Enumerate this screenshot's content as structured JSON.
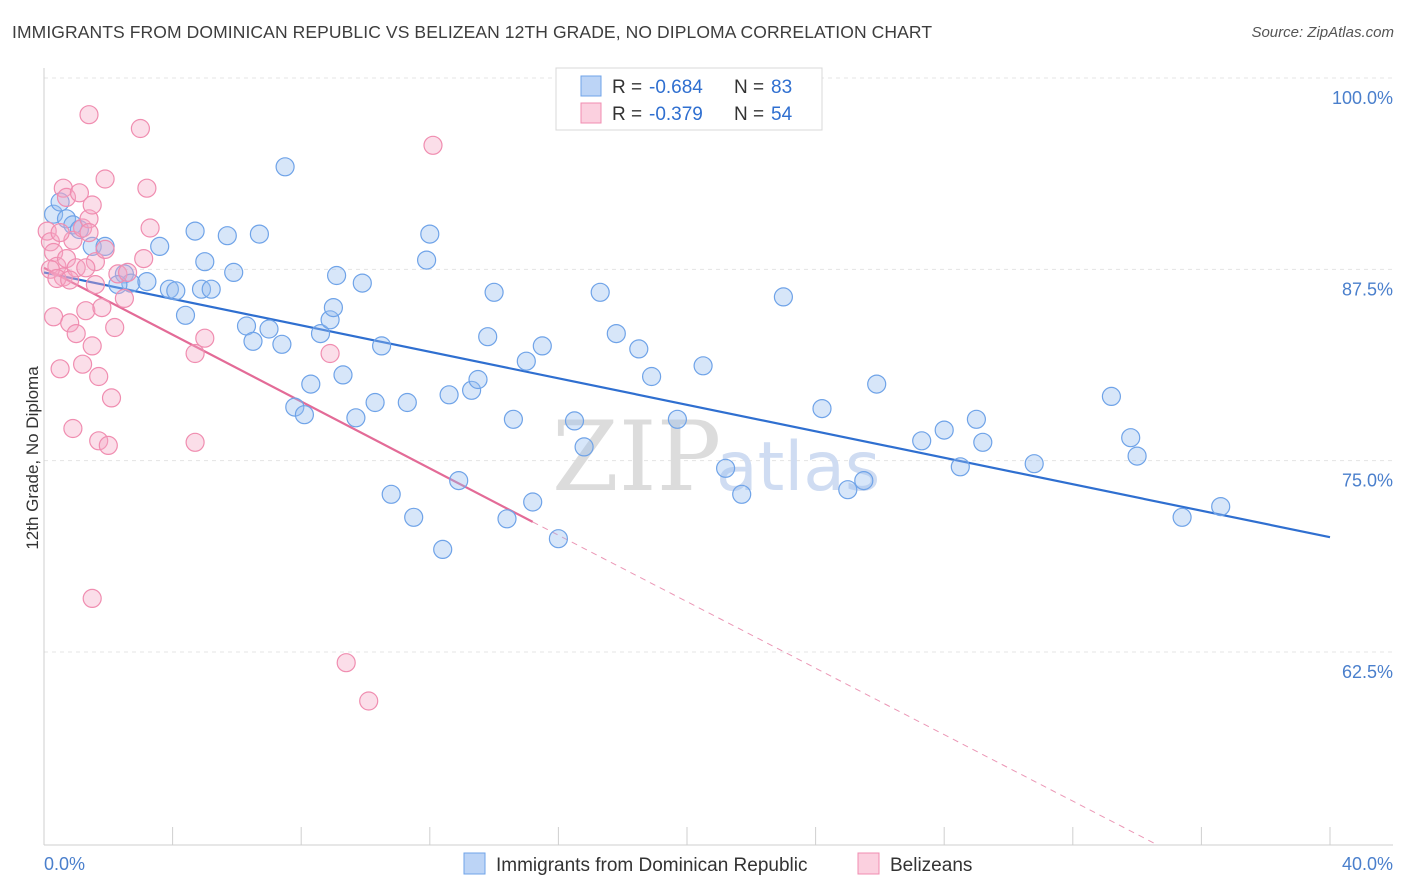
{
  "header": {
    "title": "IMMIGRANTS FROM DOMINICAN REPUBLIC VS BELIZEAN 12TH GRADE, NO DIPLOMA CORRELATION CHART",
    "source": "Source: ZipAtlas.com"
  },
  "watermark": {
    "zip": "ZIP",
    "atlas": "atlas"
  },
  "legend": {
    "rows": [
      {
        "r_label": "R =",
        "r_value": "-0.684",
        "n_label": "N =",
        "n_value": "83",
        "color": "#6fa3e8"
      },
      {
        "r_label": "R =",
        "r_value": "-0.379",
        "n_label": "N =",
        "n_value": "54",
        "color": "#f08db0"
      }
    ]
  },
  "chart_data": {
    "type": "scatter",
    "title": "IMMIGRANTS FROM DOMINICAN REPUBLIC VS BELIZEAN 12TH GRADE, NO DIPLOMA CORRELATION CHART",
    "xlabel": "",
    "ylabel": "12th Grade, No Diploma",
    "xlim": [
      0,
      40
    ],
    "ylim": [
      52,
      102
    ],
    "x_ticks": [
      "0.0%",
      "40.0%"
    ],
    "y_ticks": [
      {
        "value": 100,
        "label": "100.0%"
      },
      {
        "value": 87.5,
        "label": "87.5%"
      },
      {
        "value": 75,
        "label": "75.0%"
      },
      {
        "value": 62.5,
        "label": "62.5%"
      }
    ],
    "grid": true,
    "legend_position": "top-center",
    "series": [
      {
        "name": "Immigrants from Dominican Republic",
        "color": "#6fa3e8",
        "line_color": "#2f6fd0",
        "trend": {
          "x": [
            0,
            40
          ],
          "y": [
            87.3,
            70.0
          ],
          "dashed_after": null
        },
        "points": [
          [
            0.3,
            91.1
          ],
          [
            0.5,
            91.9
          ],
          [
            0.7,
            90.8
          ],
          [
            0.9,
            90.4
          ],
          [
            1.1,
            90.1
          ],
          [
            1.5,
            89.0
          ],
          [
            1.9,
            89.0
          ],
          [
            2.5,
            87.2
          ],
          [
            2.7,
            86.6
          ],
          [
            3.2,
            86.7
          ],
          [
            3.6,
            89.0
          ],
          [
            3.9,
            86.2
          ],
          [
            4.1,
            86.1
          ],
          [
            4.4,
            84.5
          ],
          [
            4.7,
            90.0
          ],
          [
            4.9,
            86.2
          ],
          [
            5.2,
            86.2
          ],
          [
            5.7,
            89.7
          ],
          [
            5.9,
            87.3
          ],
          [
            6.3,
            83.8
          ],
          [
            6.5,
            82.8
          ],
          [
            6.7,
            89.8
          ],
          [
            7.0,
            83.6
          ],
          [
            7.4,
            82.6
          ],
          [
            7.5,
            94.2
          ],
          [
            7.8,
            78.5
          ],
          [
            8.1,
            78.0
          ],
          [
            8.3,
            80.0
          ],
          [
            8.6,
            83.3
          ],
          [
            8.9,
            84.2
          ],
          [
            9.1,
            87.1
          ],
          [
            9.3,
            80.6
          ],
          [
            9.7,
            77.8
          ],
          [
            9.9,
            86.6
          ],
          [
            10.3,
            78.8
          ],
          [
            10.5,
            82.5
          ],
          [
            10.8,
            72.8
          ],
          [
            11.3,
            78.8
          ],
          [
            11.5,
            71.3
          ],
          [
            11.9,
            88.1
          ],
          [
            12.0,
            89.8
          ],
          [
            12.4,
            69.2
          ],
          [
            12.6,
            79.3
          ],
          [
            12.9,
            73.7
          ],
          [
            13.3,
            79.6
          ],
          [
            13.5,
            80.3
          ],
          [
            13.8,
            83.1
          ],
          [
            14.0,
            86.0
          ],
          [
            14.4,
            71.2
          ],
          [
            14.6,
            77.7
          ],
          [
            15.0,
            81.5
          ],
          [
            15.2,
            72.3
          ],
          [
            16.0,
            69.9
          ],
          [
            16.5,
            77.6
          ],
          [
            16.8,
            75.9
          ],
          [
            17.3,
            86.0
          ],
          [
            17.8,
            83.3
          ],
          [
            18.5,
            82.3
          ],
          [
            18.9,
            80.5
          ],
          [
            19.7,
            77.7
          ],
          [
            20.5,
            81.2
          ],
          [
            21.2,
            74.5
          ],
          [
            21.7,
            72.8
          ],
          [
            23.0,
            85.7
          ],
          [
            24.2,
            78.4
          ],
          [
            25.0,
            73.1
          ],
          [
            25.5,
            73.7
          ],
          [
            25.9,
            80.0
          ],
          [
            27.3,
            76.3
          ],
          [
            28.0,
            77.0
          ],
          [
            28.5,
            74.6
          ],
          [
            29.0,
            77.7
          ],
          [
            29.2,
            76.2
          ],
          [
            30.8,
            74.8
          ],
          [
            33.2,
            79.2
          ],
          [
            33.8,
            76.5
          ],
          [
            34.0,
            75.3
          ],
          [
            35.4,
            71.3
          ],
          [
            36.6,
            72.0
          ],
          [
            5.0,
            88.0
          ],
          [
            9.0,
            85.0
          ],
          [
            15.5,
            82.5
          ],
          [
            2.3,
            86.5
          ]
        ]
      },
      {
        "name": "Belizeans",
        "color": "#f08db0",
        "line_color": "#e36b97",
        "trend": {
          "x": [
            0,
            15.2
          ],
          "y": [
            87.6,
            71.0
          ],
          "dashed_to": [
            35.0,
            49.5
          ]
        },
        "points": [
          [
            0.1,
            90.0
          ],
          [
            0.2,
            89.3
          ],
          [
            0.3,
            88.6
          ],
          [
            0.4,
            87.7
          ],
          [
            0.3,
            84.4
          ],
          [
            0.5,
            81.0
          ],
          [
            0.6,
            87.0
          ],
          [
            0.6,
            92.8
          ],
          [
            0.7,
            88.2
          ],
          [
            0.8,
            84.0
          ],
          [
            0.7,
            92.2
          ],
          [
            0.9,
            89.4
          ],
          [
            0.9,
            77.1
          ],
          [
            1.0,
            87.6
          ],
          [
            1.1,
            92.5
          ],
          [
            1.0,
            83.3
          ],
          [
            1.2,
            90.2
          ],
          [
            1.2,
            81.3
          ],
          [
            1.3,
            84.8
          ],
          [
            1.4,
            90.8
          ],
          [
            1.4,
            89.9
          ],
          [
            1.5,
            82.5
          ],
          [
            1.4,
            97.6
          ],
          [
            1.5,
            91.7
          ],
          [
            1.5,
            66.0
          ],
          [
            1.6,
            86.5
          ],
          [
            1.6,
            88.0
          ],
          [
            1.7,
            80.5
          ],
          [
            1.7,
            76.3
          ],
          [
            1.8,
            85.0
          ],
          [
            1.9,
            88.8
          ],
          [
            1.9,
            93.4
          ],
          [
            2.0,
            76.0
          ],
          [
            2.1,
            79.1
          ],
          [
            2.2,
            83.7
          ],
          [
            2.3,
            87.2
          ],
          [
            2.5,
            85.6
          ],
          [
            2.6,
            87.3
          ],
          [
            3.0,
            96.7
          ],
          [
            3.1,
            88.2
          ],
          [
            3.2,
            92.8
          ],
          [
            3.3,
            90.2
          ],
          [
            4.7,
            82.0
          ],
          [
            4.7,
            76.2
          ],
          [
            5.0,
            83.0
          ],
          [
            8.9,
            82.0
          ],
          [
            9.4,
            61.8
          ],
          [
            10.1,
            59.3
          ],
          [
            12.1,
            95.6
          ],
          [
            0.2,
            87.5
          ],
          [
            0.4,
            86.9
          ],
          [
            0.8,
            86.8
          ],
          [
            1.3,
            87.6
          ],
          [
            0.5,
            89.9
          ]
        ]
      }
    ]
  },
  "bottom_legend": {
    "items": [
      {
        "label": "Immigrants from Dominican Republic",
        "color": "#6fa3e8"
      },
      {
        "label": "Belizeans",
        "color": "#f08db0"
      }
    ]
  }
}
